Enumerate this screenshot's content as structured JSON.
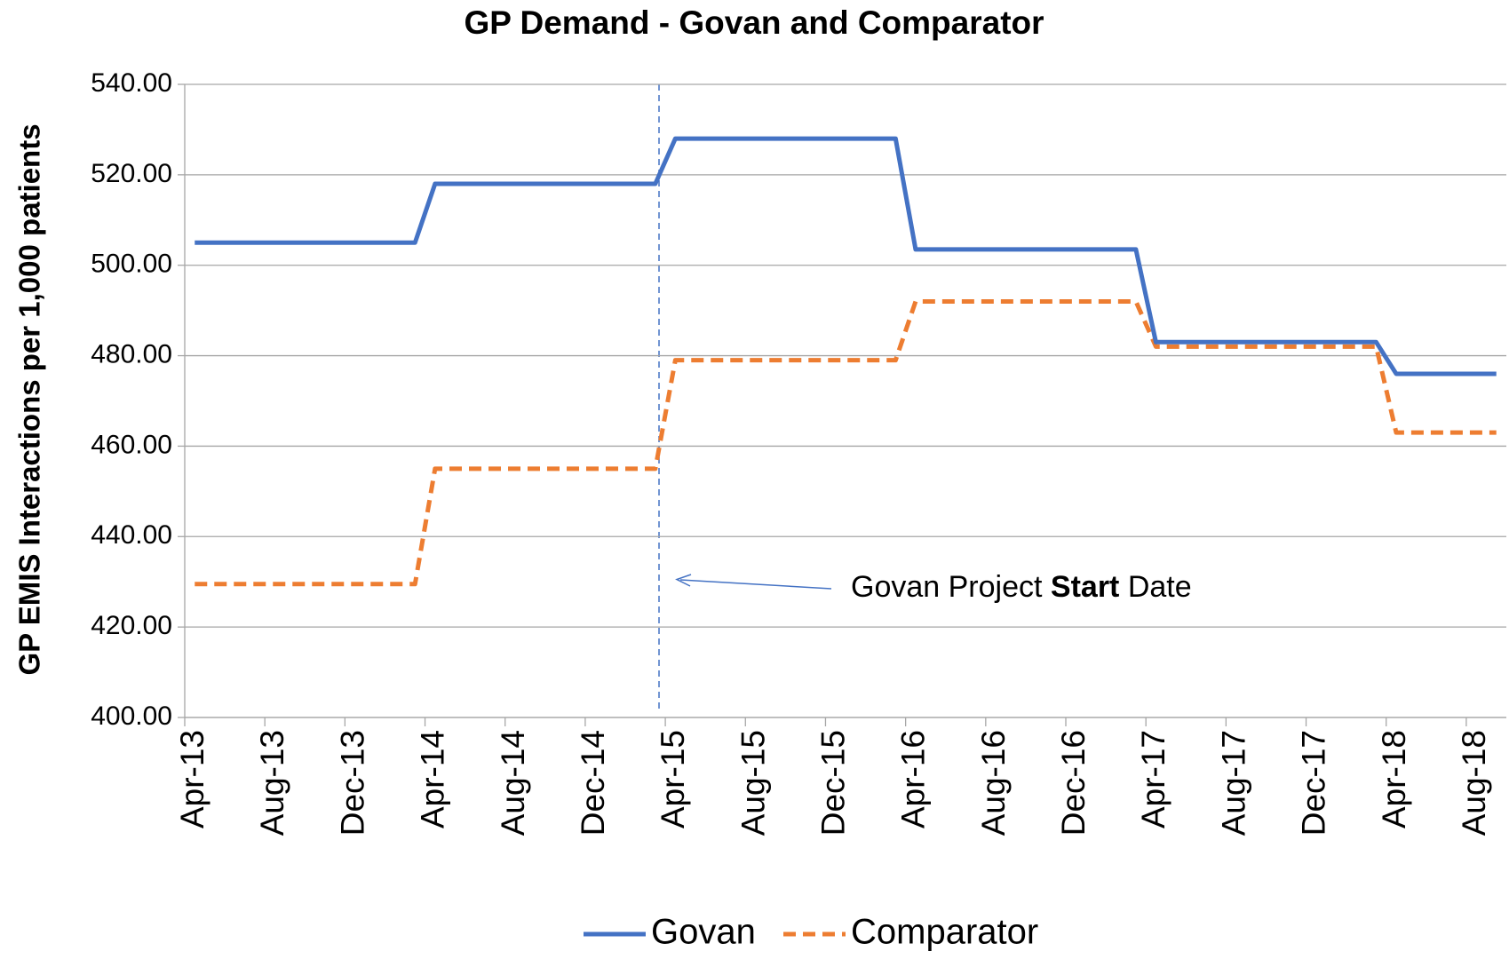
{
  "chart_data": {
    "type": "line",
    "title": "GP Demand - Govan and Comparator",
    "y_label": "GP EMIS Interactions per 1,000 patients",
    "annotation_parts": [
      "Govan Project",
      "Start",
      "Date"
    ],
    "categories": [
      "Apr-13",
      null,
      null,
      null,
      "Aug-13",
      null,
      null,
      null,
      "Dec-13",
      null,
      null,
      null,
      "Apr-14",
      null,
      null,
      null,
      "Aug-14",
      null,
      null,
      null,
      "Dec-14",
      null,
      null,
      null,
      "Apr-15",
      null,
      null,
      null,
      "Aug-15",
      null,
      null,
      null,
      "Dec-15",
      null,
      null,
      null,
      "Apr-16",
      null,
      null,
      null,
      "Aug-16",
      null,
      null,
      null,
      "Dec-16",
      null,
      null,
      null,
      "Apr-17",
      null,
      null,
      null,
      "Aug-17",
      null,
      null,
      null,
      "Dec-17",
      null,
      null,
      null,
      "Apr-18",
      null,
      null,
      null,
      "Aug-18",
      null
    ],
    "series": [
      {
        "name": "Govan",
        "color": "#4472c4",
        "line_style": "solid",
        "values": [
          505,
          505,
          505,
          505,
          505,
          505,
          505,
          505,
          505,
          505,
          505,
          505,
          518,
          518,
          518,
          518,
          518,
          518,
          518,
          518,
          518,
          518,
          518,
          518,
          528,
          528,
          528,
          528,
          528,
          528,
          528,
          528,
          528,
          528,
          528,
          528,
          503.5,
          503.5,
          503.5,
          503.5,
          503.5,
          503.5,
          503.5,
          503.5,
          503.5,
          503.5,
          503.5,
          503.5,
          483,
          483,
          483,
          483,
          483,
          483,
          483,
          483,
          483,
          483,
          483,
          483,
          476,
          476,
          476,
          476,
          476,
          476
        ]
      },
      {
        "name": "Comparator",
        "color": "#ed7d31",
        "line_style": "dashed",
        "values": [
          429.5,
          429.5,
          429.5,
          429.5,
          429.5,
          429.5,
          429.5,
          429.5,
          429.5,
          429.5,
          429.5,
          429.5,
          455,
          455,
          455,
          455,
          455,
          455,
          455,
          455,
          455,
          455,
          455,
          455,
          479,
          479,
          479,
          479,
          479,
          479,
          479,
          479,
          479,
          479,
          479,
          479,
          492,
          492,
          492,
          492,
          492,
          492,
          492,
          492,
          492,
          492,
          492,
          492,
          482,
          482,
          482,
          482,
          482,
          482,
          482,
          482,
          482,
          482,
          482,
          482,
          463,
          463,
          463,
          463,
          463,
          463
        ]
      }
    ],
    "ylim": [
      400,
      540
    ],
    "yticks": [
      {
        "value": 400,
        "label": "400.00"
      },
      {
        "value": 420,
        "label": "420.00"
      },
      {
        "value": 440,
        "label": "440.00"
      },
      {
        "value": 460,
        "label": "460.00"
      },
      {
        "value": 480,
        "label": "480.00"
      },
      {
        "value": 500,
        "label": "500.00"
      },
      {
        "value": 520,
        "label": "520.00"
      },
      {
        "value": 540,
        "label": "540.00"
      }
    ],
    "grid": true,
    "legend": "bottom"
  }
}
